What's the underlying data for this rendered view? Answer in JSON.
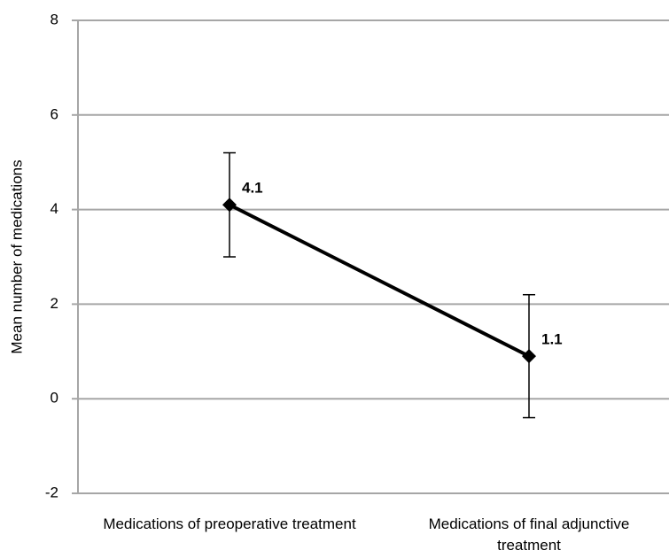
{
  "chart_data": {
    "type": "line",
    "y_label": "Mean number of medications",
    "categories": [
      "Medications of preoperative treatment",
      "Medications of final adjunctive treatment"
    ],
    "series": [
      {
        "name": "Mean",
        "color": "#000000",
        "values": [
          4.1,
          0.9
        ],
        "errors": [
          1.1,
          1.3
        ]
      }
    ],
    "annotations": [
      "4.1",
      "1.1"
    ],
    "ylim": [
      -2,
      8
    ],
    "yticks": [
      -2,
      0,
      2,
      4,
      6,
      8
    ],
    "grid": true
  }
}
